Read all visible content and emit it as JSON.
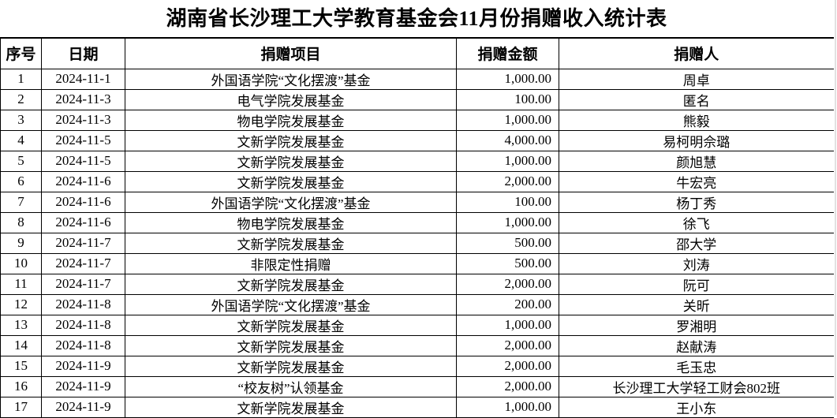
{
  "title": "湖南省长沙理工大学教育基金会11月份捐赠收入统计表",
  "table": {
    "columns": [
      "序号",
      "日期",
      "捐赠项目",
      "捐赠金额",
      "捐赠人"
    ],
    "rows": [
      [
        "1",
        "2024-11-1",
        "外国语学院“文化摆渡”基金",
        "1,000.00",
        "周卓"
      ],
      [
        "2",
        "2024-11-3",
        "电气学院发展基金",
        "100.00",
        "匿名"
      ],
      [
        "3",
        "2024-11-3",
        "物电学院发展基金",
        "1,000.00",
        "熊毅"
      ],
      [
        "4",
        "2024-11-5",
        "文新学院发展基金",
        "4,000.00",
        "易柯明佘璐"
      ],
      [
        "5",
        "2024-11-5",
        "文新学院发展基金",
        "1,000.00",
        "颜旭慧"
      ],
      [
        "6",
        "2024-11-6",
        "文新学院发展基金",
        "2,000.00",
        "牛宏亮"
      ],
      [
        "7",
        "2024-11-6",
        "外国语学院“文化摆渡”基金",
        "100.00",
        "杨丁秀"
      ],
      [
        "8",
        "2024-11-6",
        "物电学院发展基金",
        "1,000.00",
        "徐飞"
      ],
      [
        "9",
        "2024-11-7",
        "文新学院发展基金",
        "500.00",
        "邵大学"
      ],
      [
        "10",
        "2024-11-7",
        "非限定性捐赠",
        "500.00",
        "刘涛"
      ],
      [
        "11",
        "2024-11-7",
        "文新学院发展基金",
        "2,000.00",
        "阮可"
      ],
      [
        "12",
        "2024-11-8",
        "外国语学院“文化摆渡”基金",
        "200.00",
        "关昕"
      ],
      [
        "13",
        "2024-11-8",
        "文新学院发展基金",
        "1,000.00",
        "罗湘明"
      ],
      [
        "14",
        "2024-11-8",
        "文新学院发展基金",
        "2,000.00",
        "赵献涛"
      ],
      [
        "15",
        "2024-11-9",
        "文新学院发展基金",
        "2,000.00",
        "毛玉忠"
      ],
      [
        "16",
        "2024-11-9",
        "“校友树”认领基金",
        "2,000.00",
        "长沙理工大学轻工财会802班"
      ],
      [
        "17",
        "2024-11-9",
        "文新学院发展基金",
        "1,000.00",
        "王小东"
      ]
    ]
  },
  "colors": {
    "background": "#ffffff",
    "text": "#000000",
    "border": "#000000",
    "window_edge": "#e2e2e2"
  }
}
